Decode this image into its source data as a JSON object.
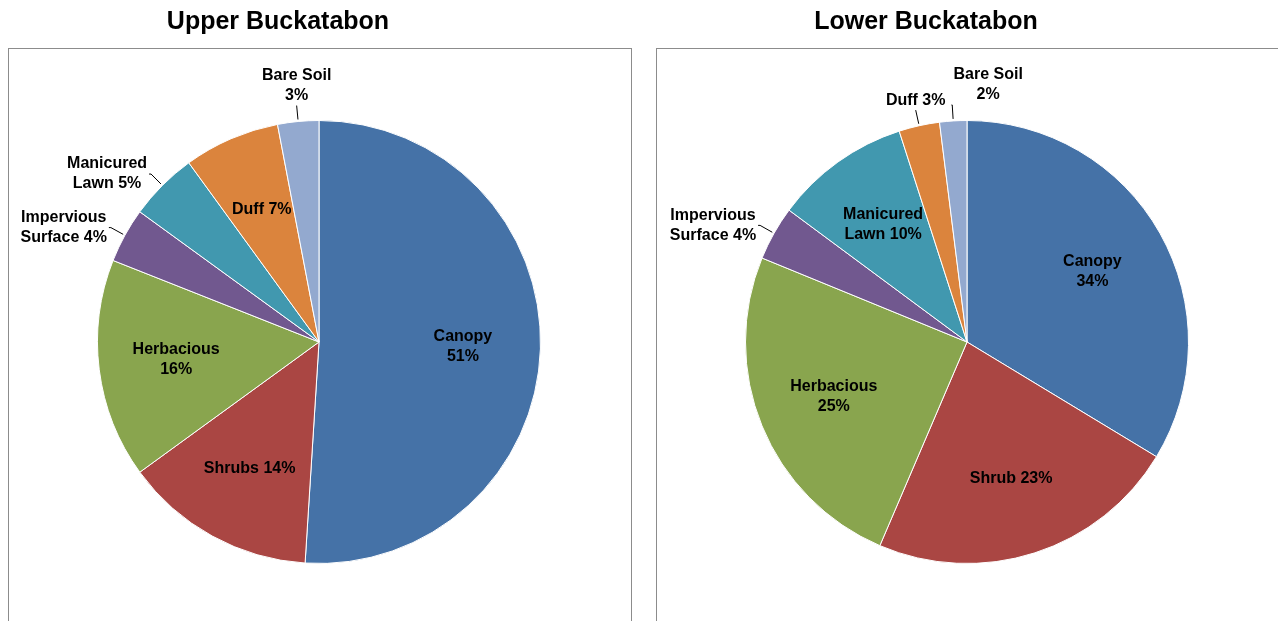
{
  "chart_data": [
    {
      "type": "pie",
      "title": "Upper Buckatabon",
      "categories": [
        "Canopy",
        "Shrubs",
        "Herbacious",
        "Impervious Surface",
        "Manicured Lawn",
        "Duff",
        "Bare Soil"
      ],
      "values": [
        51,
        14,
        16,
        4,
        5,
        7,
        3
      ],
      "value_labels": [
        "51%",
        "14%",
        "16%",
        "4%",
        "5%",
        "7%",
        "3%"
      ],
      "colors": [
        "#4572a7",
        "#aa4643",
        "#89a54e",
        "#71588f",
        "#4198af",
        "#db843d",
        "#93a9cf"
      ]
    },
    {
      "type": "pie",
      "title": "Lower Buckatabon",
      "categories": [
        "Canopy",
        "Shrub",
        "Herbacious",
        "Impervious Surface",
        "Manicured Lawn",
        "Duff",
        "Bare Soil"
      ],
      "values": [
        34,
        23,
        25,
        4,
        10,
        3,
        2
      ],
      "value_labels": [
        "34%",
        "23%",
        "25%",
        "4%",
        "10%",
        "3%",
        "2%"
      ],
      "colors": [
        "#4572a7",
        "#aa4643",
        "#89a54e",
        "#71588f",
        "#4198af",
        "#db843d",
        "#93a9cf"
      ]
    }
  ]
}
